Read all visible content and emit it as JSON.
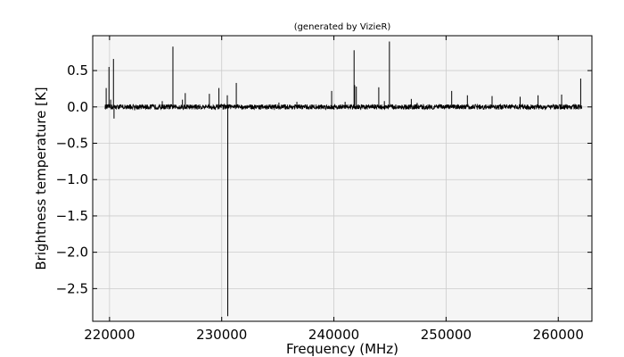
{
  "chart_data": {
    "type": "line",
    "title": "(generated by VizieR)",
    "xlabel": "Frequency (MHz)",
    "ylabel": "Brightness temperature [K]",
    "xlim": [
      218500,
      263000
    ],
    "ylim": [
      -2.95,
      0.98
    ],
    "grid": true,
    "x_ticks": [
      220000,
      230000,
      240000,
      250000,
      260000
    ],
    "x_tick_labels": [
      "220000",
      "230000",
      "240000",
      "250000",
      "260000"
    ],
    "y_ticks": [
      0.5,
      0.0,
      -0.5,
      -1.0,
      -1.5,
      -2.0,
      -2.5
    ],
    "y_tick_labels": [
      "0.5",
      "0.0",
      "−0.5",
      "−1.0",
      "−1.5",
      "−2.0",
      "−2.5"
    ],
    "series": [
      {
        "color": "#000000",
        "baseline_ranges": [
          [
            219600,
            230500
          ],
          [
            230500,
            262100
          ]
        ],
        "lines": [
          {
            "x": 219700,
            "y": 0.26
          },
          {
            "x": 219950,
            "y": 0.55
          },
          {
            "x": 220100,
            "y": 0.1
          },
          {
            "x": 220350,
            "y": 0.66
          },
          {
            "x": 220400,
            "y": -0.16
          },
          {
            "x": 224700,
            "y": 0.08
          },
          {
            "x": 225650,
            "y": 0.83
          },
          {
            "x": 226500,
            "y": 0.1
          },
          {
            "x": 226750,
            "y": 0.19
          },
          {
            "x": 228900,
            "y": 0.18
          },
          {
            "x": 229750,
            "y": 0.26
          },
          {
            "x": 230500,
            "y": 0.16
          },
          {
            "x": 230540,
            "y": -2.88
          },
          {
            "x": 231300,
            "y": 0.33
          },
          {
            "x": 235100,
            "y": 0.06
          },
          {
            "x": 236700,
            "y": 0.07
          },
          {
            "x": 239800,
            "y": 0.22
          },
          {
            "x": 241000,
            "y": 0.07
          },
          {
            "x": 241800,
            "y": 0.78
          },
          {
            "x": 241850,
            "y": 0.3
          },
          {
            "x": 242000,
            "y": 0.28
          },
          {
            "x": 242000,
            "y": -0.03
          },
          {
            "x": 244000,
            "y": 0.27
          },
          {
            "x": 244500,
            "y": 0.08
          },
          {
            "x": 244950,
            "y": 0.9
          },
          {
            "x": 246900,
            "y": 0.11
          },
          {
            "x": 250500,
            "y": 0.22
          },
          {
            "x": 251900,
            "y": 0.16
          },
          {
            "x": 254100,
            "y": 0.15
          },
          {
            "x": 256600,
            "y": 0.14
          },
          {
            "x": 258200,
            "y": 0.16
          },
          {
            "x": 260300,
            "y": 0.17
          },
          {
            "x": 262000,
            "y": 0.39
          }
        ]
      }
    ]
  }
}
